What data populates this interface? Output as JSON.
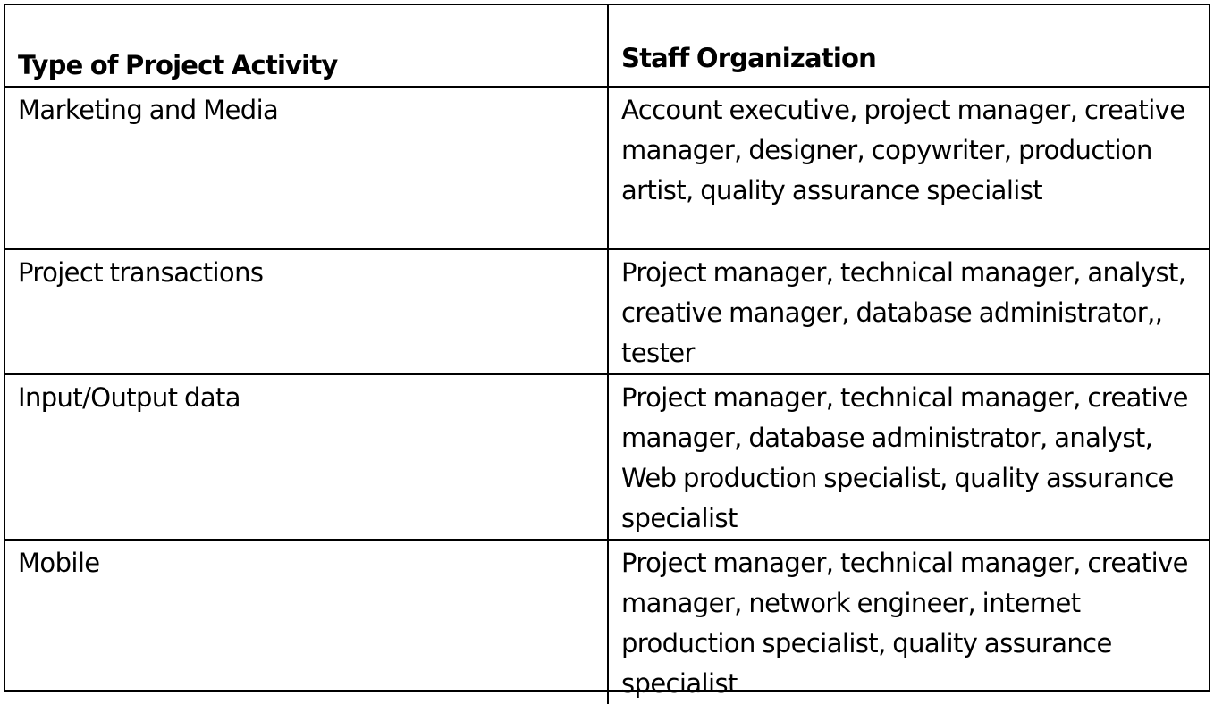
{
  "table": {
    "headers": [
      "Type of Project Activity",
      "Staff Organization"
    ],
    "rows": [
      {
        "activity": "Marketing and Media",
        "staff": "Account executive, project manager, creative manager, designer, copywriter, production artist, quality assurance specialist"
      },
      {
        "activity": "Project transactions",
        "staff": "Project manager, technical manager, analyst, creative manager, database administrator,, tester"
      },
      {
        "activity": "Input/Output data",
        "staff": "Project manager, technical manager, creative manager, database administrator, analyst, Web production specialist, quality assurance specialist"
      },
      {
        "activity": "Mobile",
        "staff": "Project manager, technical manager, creative manager, network engineer, internet production specialist, quality assurance specialist"
      }
    ]
  }
}
